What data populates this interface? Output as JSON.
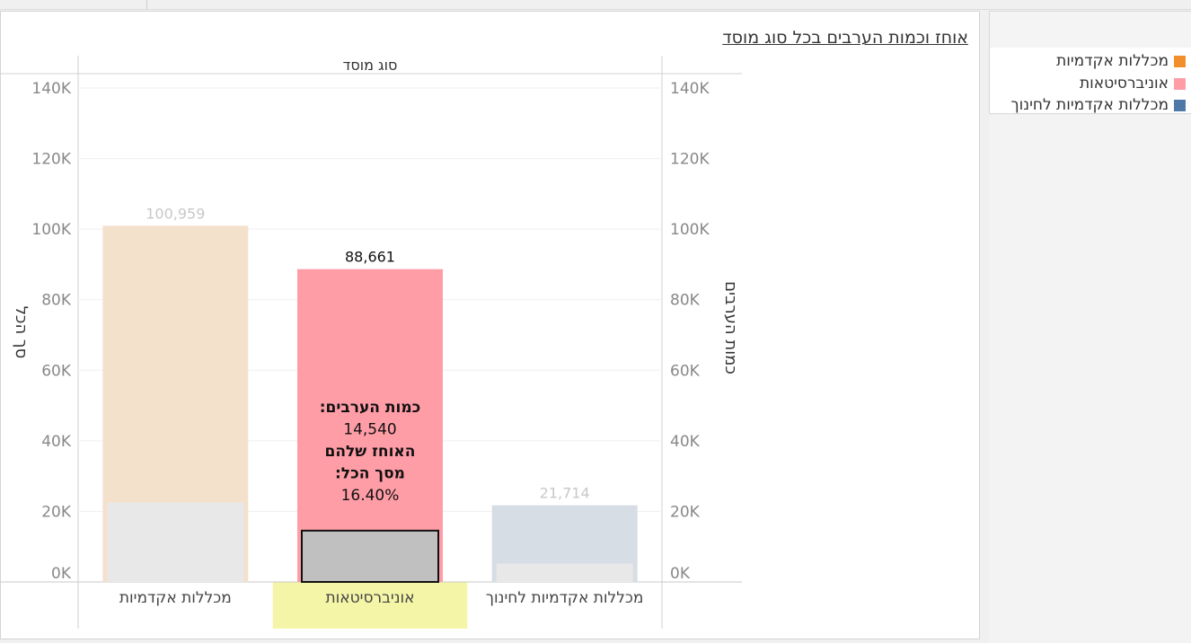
{
  "title": "אוחז וכמות הערבים בכל סוג מוסד",
  "header_label": "סוג מוסד",
  "legend": [
    {
      "label": "מכללות אקדמיות",
      "color": "#f28e2b"
    },
    {
      "label": "אוניברסיטאות",
      "color": "#ff9da7"
    },
    {
      "label": "מכללות אקדמיות לחינוך",
      "color": "#4e79a7"
    }
  ],
  "chart_data": {
    "type": "bar",
    "categories": [
      "מכללות אקדמיות",
      "אוניברסיטאות",
      "מכללות אקדמיות לחינוך"
    ],
    "series": [
      {
        "name": "סך הכל",
        "values": [
          100959,
          88661,
          21714
        ]
      },
      {
        "name": "כמות הערבים",
        "values": [
          22500,
          14540,
          5200
        ]
      }
    ],
    "data_labels": [
      "100,959",
      "88,661",
      "21,714"
    ],
    "highlighted_category": "אוניברסיטאות",
    "tooltip": {
      "line1": "כמות הערבים:",
      "line2": "14,540",
      "line3": "האוחז שלהם",
      "line4": "מסך הכל:",
      "line5": "16.40%"
    },
    "ylabel_left": "סך הכל",
    "ylabel_right": "כמות הערבים",
    "yticks": [
      "0K",
      "20K",
      "40K",
      "60K",
      "80K",
      "100K",
      "120K",
      "140K"
    ],
    "ylim": [
      0,
      140000
    ],
    "colors": {
      "total_bars": [
        "#f3e1cc",
        "#ff9da7",
        "#d6dde4"
      ],
      "arab_bars": [
        "#e8e8e8",
        "#c0c0c0",
        "#e8e8e8"
      ],
      "total_label": "#c8c8c8",
      "highlight_label": "#111111",
      "highlight_bg": "#f5f5a8"
    },
    "grid": true
  }
}
